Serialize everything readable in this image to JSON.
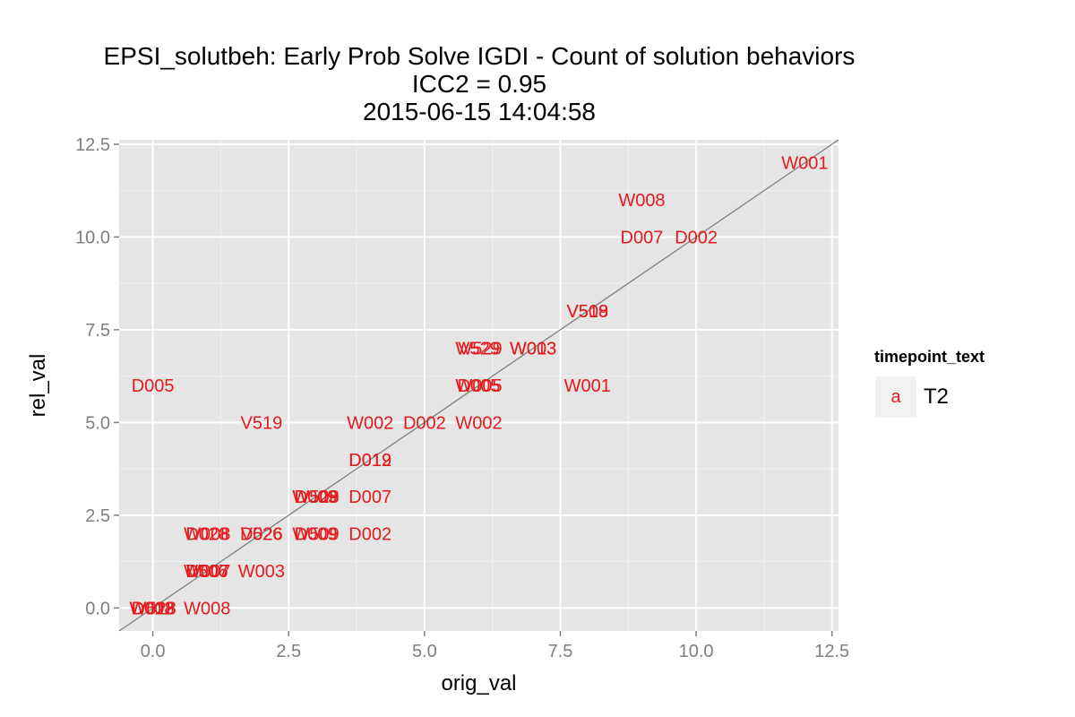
{
  "title": {
    "line1": "EPSI_solutbeh: Early Prob Solve IGDI - Count of solution behaviors",
    "line2": "ICC2 = 0.95",
    "line3": "2015-06-15 14:04:58"
  },
  "legend": {
    "title": "timepoint_text",
    "key_glyph": "a",
    "label": "T2"
  },
  "colors": {
    "point": "#e41a1c",
    "panel": "#e5e5e5",
    "grid_major": "#ffffff",
    "grid_minor": "#f2f2f2",
    "identity_line": "#808080",
    "axis_text": "#7f7f7f"
  },
  "chart_data": {
    "type": "scatter",
    "xlabel": "orig_val",
    "ylabel": "rel_val",
    "xlim": [
      -0.62,
      12.62
    ],
    "ylim": [
      -0.62,
      12.62
    ],
    "xticks": [
      0.0,
      2.5,
      5.0,
      7.5,
      10.0,
      12.5
    ],
    "yticks": [
      0.0,
      2.5,
      5.0,
      7.5,
      10.0,
      12.5
    ],
    "xtick_labels": [
      "0.0",
      "2.5",
      "5.0",
      "7.5",
      "10.0",
      "12.5"
    ],
    "ytick_labels": [
      "0.0",
      "2.5",
      "5.0",
      "7.5",
      "10.0",
      "12.5"
    ],
    "reference_line": "identity (y = x)",
    "legend_position": "right",
    "series": [
      {
        "name": "T2",
        "points": [
          {
            "x": 12,
            "y": 12,
            "label": "W001"
          },
          {
            "x": 9,
            "y": 11,
            "label": "W008"
          },
          {
            "x": 9,
            "y": 10,
            "label": "D007"
          },
          {
            "x": 10,
            "y": 10,
            "label": "D002"
          },
          {
            "x": 8,
            "y": 8,
            "label": "V509"
          },
          {
            "x": 8,
            "y": 8,
            "label": "V518"
          },
          {
            "x": 6,
            "y": 7,
            "label": "W529"
          },
          {
            "x": 6,
            "y": 7,
            "label": "V529"
          },
          {
            "x": 7,
            "y": 7,
            "label": "W003"
          },
          {
            "x": 7,
            "y": 7,
            "label": "W013"
          },
          {
            "x": 0,
            "y": 6,
            "label": "D005"
          },
          {
            "x": 6,
            "y": 6,
            "label": "W005"
          },
          {
            "x": 6,
            "y": 6,
            "label": "D005"
          },
          {
            "x": 8,
            "y": 6,
            "label": "W001"
          },
          {
            "x": 2,
            "y": 5,
            "label": "V519"
          },
          {
            "x": 4,
            "y": 5,
            "label": "W002"
          },
          {
            "x": 5,
            "y": 5,
            "label": "D002"
          },
          {
            "x": 6,
            "y": 5,
            "label": "W002"
          },
          {
            "x": 4,
            "y": 4,
            "label": "D012"
          },
          {
            "x": 4,
            "y": 4,
            "label": "D019"
          },
          {
            "x": 3,
            "y": 3,
            "label": "W528"
          },
          {
            "x": 3,
            "y": 3,
            "label": "D009"
          },
          {
            "x": 3,
            "y": 3,
            "label": "W509"
          },
          {
            "x": 4,
            "y": 3,
            "label": "D007"
          },
          {
            "x": 1,
            "y": 2,
            "label": "D028"
          },
          {
            "x": 1,
            "y": 2,
            "label": "W008"
          },
          {
            "x": 2,
            "y": 2,
            "label": "V526"
          },
          {
            "x": 2,
            "y": 2,
            "label": "D026"
          },
          {
            "x": 3,
            "y": 2,
            "label": "W509"
          },
          {
            "x": 3,
            "y": 2,
            "label": "D009"
          },
          {
            "x": 4,
            "y": 2,
            "label": "D002"
          },
          {
            "x": 1,
            "y": 1,
            "label": "W007"
          },
          {
            "x": 1,
            "y": 1,
            "label": "D007"
          },
          {
            "x": 1,
            "y": 1,
            "label": "V506"
          },
          {
            "x": 2,
            "y": 1,
            "label": "W003"
          },
          {
            "x": 0,
            "y": 0,
            "label": "W528"
          },
          {
            "x": 0,
            "y": 0,
            "label": "D012"
          },
          {
            "x": 0,
            "y": 0,
            "label": "W018"
          },
          {
            "x": 0,
            "y": 0,
            "label": "D008"
          },
          {
            "x": 1,
            "y": 0,
            "label": "W008"
          }
        ]
      }
    ]
  }
}
